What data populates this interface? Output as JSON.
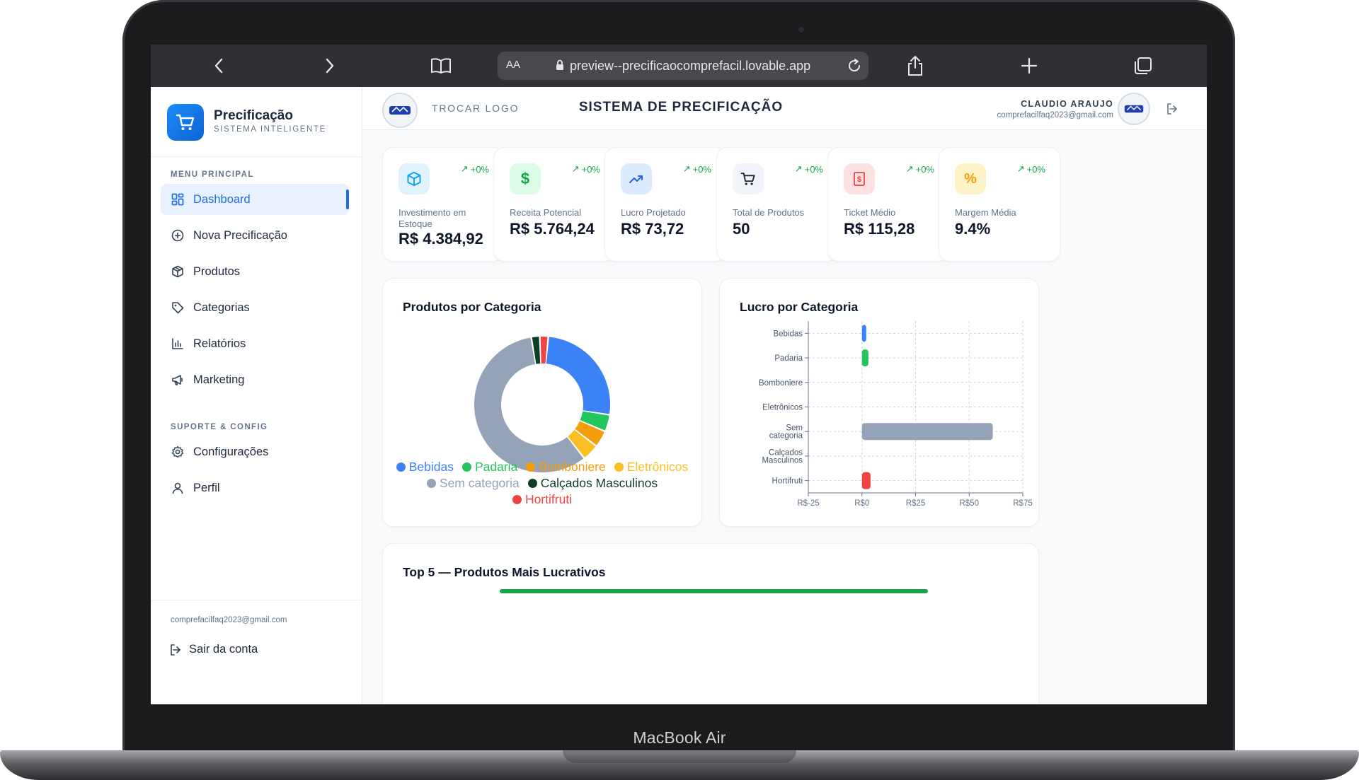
{
  "device": {
    "label": "MacBook Air"
  },
  "browser": {
    "text_size_label": "AA",
    "url": "preview--precificaocomprefacil.lovable.app"
  },
  "sidebar": {
    "brand_name": "Precificação",
    "brand_sub": "SISTEMA INTELIGENTE",
    "menu_title": "MENU PRINCIPAL",
    "menu_items": [
      {
        "label": "Dashboard",
        "icon": "dashboard-icon"
      },
      {
        "label": "Nova Precificação",
        "icon": "plus-circle-icon"
      },
      {
        "label": "Produtos",
        "icon": "box-icon"
      },
      {
        "label": "Categorias",
        "icon": "tag-icon"
      },
      {
        "label": "Relatórios",
        "icon": "bar-chart-icon"
      },
      {
        "label": "Marketing",
        "icon": "megaphone-icon"
      }
    ],
    "support_title": "SUPORTE & CONFIG",
    "support_items": [
      {
        "label": "Configurações",
        "icon": "gear-icon"
      },
      {
        "label": "Perfil",
        "icon": "user-icon"
      }
    ],
    "footer_email": "comprefacilfaq2023@gmail.com",
    "logout_label": "Sair da conta"
  },
  "topbar": {
    "change_logo": "TROCAR LOGO",
    "title": "SISTEMA DE PRECIFICAÇÃO",
    "user_name": "CLAUDIO ARAUJO",
    "user_email": "comprefacilfaq2023@gmail.com"
  },
  "stats": [
    {
      "label": "Investimento em Estoque",
      "value": "R$ 4.384,92",
      "delta": "+0%",
      "icon": "box-icon",
      "color": "#0ea5e9",
      "bg": "#e0f2fe"
    },
    {
      "label": "Receita Potencial",
      "value": "R$ 5.764,24",
      "delta": "+0%",
      "icon": "dollar-icon",
      "color": "#16a34a",
      "bg": "#dcfce7"
    },
    {
      "label": "Lucro Projetado",
      "value": "R$ 73,72",
      "delta": "+0%",
      "icon": "trending-up-icon",
      "color": "#2563eb",
      "bg": "#dbeafe"
    },
    {
      "label": "Total de Produtos",
      "value": "50",
      "delta": "+0%",
      "icon": "cart-icon",
      "color": "#1e293b",
      "bg": "#f1f5f9"
    },
    {
      "label": "Ticket Médio",
      "value": "R$ 115,28",
      "delta": "+0%",
      "icon": "receipt-icon",
      "color": "#ef4444",
      "bg": "#fee2e2"
    },
    {
      "label": "Margem Média",
      "value": "9.4%",
      "delta": "+0%",
      "icon": "percent-icon",
      "color": "#f59e0b",
      "bg": "#fef3c7"
    }
  ],
  "charts": {
    "donut_title": "Produtos por Categoria",
    "bar_title": "Lucro por Categoria",
    "top5_title": "Top 5 — Produtos Mais Lucrativos"
  },
  "chart_data": [
    {
      "type": "pie",
      "title": "Produtos por Categoria",
      "categories": [
        "Bebidas",
        "Padaria",
        "Bomboniere",
        "Eletrônicos",
        "Sem categoria",
        "Calçados Masculinos",
        "Hortifruti"
      ],
      "values": [
        13,
        2,
        2,
        2,
        29,
        1,
        1
      ],
      "colors": [
        "#3b82f6",
        "#22c55e",
        "#f59e0b",
        "#fbbf24",
        "#94a3b8",
        "#0f3d24",
        "#ef4444"
      ],
      "legend_placement": "bottom",
      "legend_rows": [
        [
          0,
          1,
          2,
          3
        ],
        [
          4,
          5
        ],
        [
          6
        ]
      ]
    },
    {
      "type": "bar",
      "orientation": "horizontal",
      "title": "Lucro por Categoria",
      "categories": [
        "Bebidas",
        "Padaria",
        "Bomboniere",
        "Eletrônicos",
        "Sem categoria",
        "Calçados Masculinos",
        "Hortifruti"
      ],
      "category_labels": [
        [
          "Bebidas"
        ],
        [
          "Padaria"
        ],
        [
          "Bomboniere"
        ],
        [
          "Eletrônicos"
        ],
        [
          "Sem",
          "categoria"
        ],
        [
          "Calçados",
          "Masculinos"
        ],
        [
          "Hortifruti"
        ]
      ],
      "values": [
        2,
        3,
        0,
        0,
        61,
        0,
        4
      ],
      "colors": [
        "#3b82f6",
        "#22c55e",
        "#f59e0b",
        "#fbbf24",
        "#94a3b8",
        "#0f3d24",
        "#ef4444"
      ],
      "xlim": [
        -25,
        75
      ],
      "xticks": [
        -25,
        0,
        25,
        50,
        75
      ],
      "xtick_labels": [
        "R$-25",
        "R$0",
        "R$25",
        "R$50",
        "R$75"
      ],
      "grid": true
    }
  ]
}
